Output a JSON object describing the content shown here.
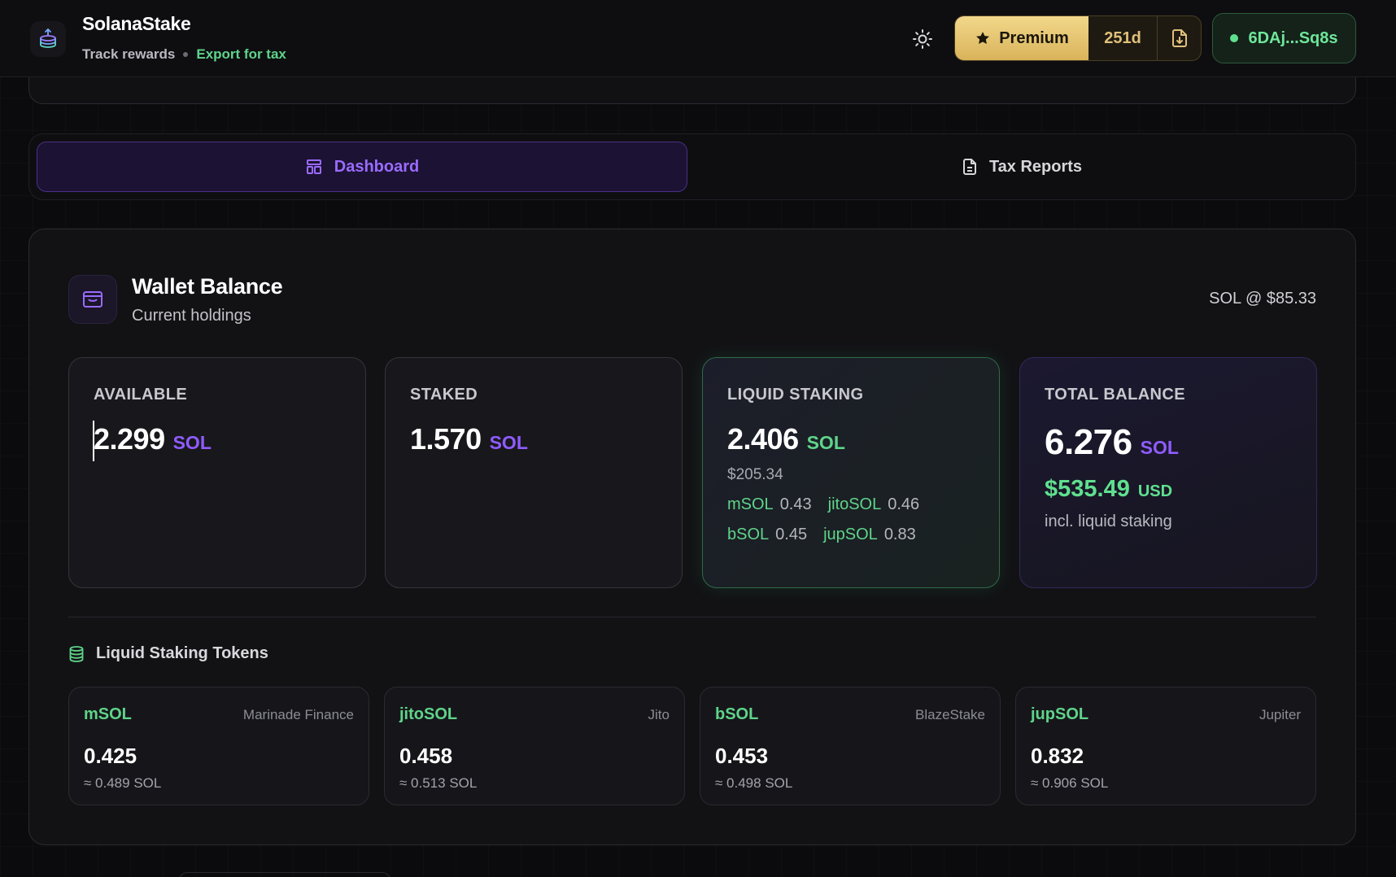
{
  "header": {
    "app_name": "SolanaStake",
    "subtitle": "Track rewards",
    "export_link": "Export for tax",
    "premium_label": "Premium",
    "days_left": "251d",
    "wallet_address": "6DAj...Sq8s"
  },
  "tabs": [
    {
      "label": "Dashboard",
      "active": true
    },
    {
      "label": "Tax Reports",
      "active": false
    }
  ],
  "wallet": {
    "title": "Wallet Balance",
    "subtitle": "Current holdings",
    "sol_price": "SOL @ $85.33",
    "available": {
      "label": "AVAILABLE",
      "value": "2.299",
      "unit": "SOL"
    },
    "staked": {
      "label": "STAKED",
      "value": "1.570",
      "unit": "SOL"
    },
    "liquid": {
      "label": "LIQUID STAKING",
      "value": "2.406",
      "unit": "SOL",
      "usd": "$205.34",
      "tokens": [
        {
          "name": "mSOL",
          "amount": "0.43"
        },
        {
          "name": "jitoSOL",
          "amount": "0.46"
        },
        {
          "name": "bSOL",
          "amount": "0.45"
        },
        {
          "name": "jupSOL",
          "amount": "0.83"
        }
      ]
    },
    "total": {
      "label": "TOTAL BALANCE",
      "value": "6.276",
      "unit": "SOL",
      "usd_value": "$535.49",
      "usd_unit": "USD",
      "note": "incl. liquid staking"
    }
  },
  "lst_section": {
    "title": "Liquid Staking Tokens",
    "tokens": [
      {
        "name": "mSOL",
        "provider": "Marinade Finance",
        "amount": "0.425",
        "sol_equiv": "≈ 0.489 SOL"
      },
      {
        "name": "jitoSOL",
        "provider": "Jito",
        "amount": "0.458",
        "sol_equiv": "≈ 0.513 SOL"
      },
      {
        "name": "bSOL",
        "provider": "BlazeStake",
        "amount": "0.453",
        "sol_equiv": "≈ 0.498 SOL"
      },
      {
        "name": "jupSOL",
        "provider": "Jupiter",
        "amount": "0.832",
        "sol_equiv": "≈ 0.906 SOL"
      }
    ]
  },
  "colors": {
    "accent_purple": "#8f5cff",
    "accent_green": "#5fd48a",
    "premium_gold": "#e0c07a"
  },
  "icons": {
    "logo": "stacked-coins-icon",
    "theme": "sun-icon",
    "premium": "star-icon",
    "export": "file-download-icon",
    "dashboard_tab": "layout-dashboard-icon",
    "tax_tab": "document-icon",
    "wallet": "wallet-icon",
    "lst": "database-icon"
  }
}
